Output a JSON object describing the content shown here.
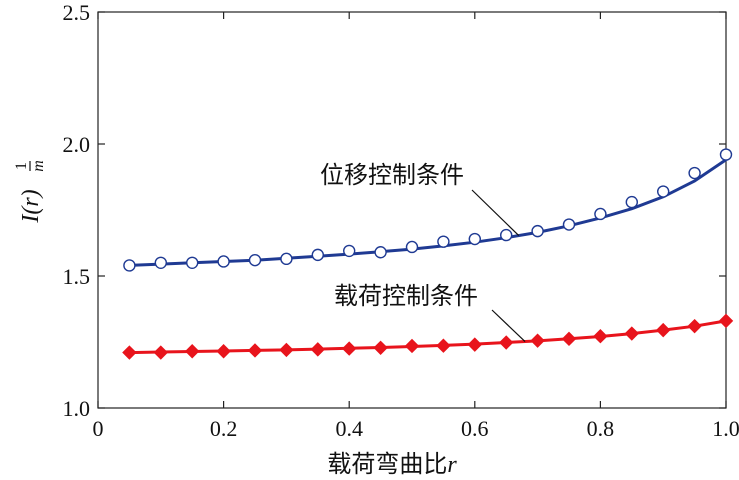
{
  "chart_data": {
    "type": "line",
    "xlabel": "载荷弯曲比",
    "xlabel_var": "r",
    "ylabel": {
      "base": "I(r)",
      "exp_num": "1",
      "exp_den": "m"
    },
    "xlim": [
      0,
      1.0
    ],
    "ylim": [
      1.0,
      2.5
    ],
    "xticks": [
      0,
      0.2,
      0.4,
      0.6,
      0.8,
      1.0
    ],
    "xtick_labels": [
      "0",
      "0.2",
      "0.4",
      "0.6",
      "0.8",
      "1.0"
    ],
    "yticks": [
      1.0,
      1.5,
      2.0,
      2.5
    ],
    "ytick_labels": [
      "1.0",
      "1.5",
      "2.0",
      "2.5"
    ],
    "grid": false,
    "series": [
      {
        "name": "位移控制条件",
        "line_color": "#1f3a93",
        "marker": "open-circle",
        "curve_x": [
          0.05,
          0.1,
          0.15,
          0.2,
          0.25,
          0.3,
          0.35,
          0.4,
          0.45,
          0.5,
          0.55,
          0.6,
          0.65,
          0.7,
          0.75,
          0.8,
          0.85,
          0.9,
          0.95,
          1.0
        ],
        "curve_y": [
          1.54,
          1.545,
          1.55,
          1.555,
          1.56,
          1.567,
          1.575,
          1.583,
          1.592,
          1.602,
          1.614,
          1.628,
          1.645,
          1.665,
          1.69,
          1.72,
          1.755,
          1.8,
          1.86,
          1.94
        ],
        "points_x": [
          0.05,
          0.1,
          0.15,
          0.2,
          0.25,
          0.3,
          0.35,
          0.4,
          0.45,
          0.5,
          0.55,
          0.6,
          0.65,
          0.7,
          0.75,
          0.8,
          0.85,
          0.9,
          0.95,
          1.0
        ],
        "points_y": [
          1.54,
          1.55,
          1.55,
          1.555,
          1.56,
          1.565,
          1.58,
          1.595,
          1.59,
          1.61,
          1.63,
          1.64,
          1.655,
          1.67,
          1.695,
          1.735,
          1.78,
          1.82,
          1.89,
          1.96
        ]
      },
      {
        "name": "载荷控制条件",
        "line_color": "#e8141c",
        "marker": "filled-diamond",
        "curve_x": [
          0.05,
          0.1,
          0.15,
          0.2,
          0.25,
          0.3,
          0.35,
          0.4,
          0.45,
          0.5,
          0.55,
          0.6,
          0.65,
          0.7,
          0.75,
          0.8,
          0.85,
          0.9,
          0.95,
          1.0
        ],
        "curve_y": [
          1.21,
          1.212,
          1.214,
          1.216,
          1.218,
          1.22,
          1.223,
          1.226,
          1.229,
          1.233,
          1.237,
          1.242,
          1.248,
          1.254,
          1.262,
          1.271,
          1.282,
          1.295,
          1.31,
          1.33
        ],
        "points_x": [
          0.05,
          0.1,
          0.15,
          0.2,
          0.25,
          0.3,
          0.35,
          0.4,
          0.45,
          0.5,
          0.55,
          0.6,
          0.65,
          0.7,
          0.75,
          0.8,
          0.85,
          0.9,
          0.95,
          1.0
        ],
        "points_y": [
          1.21,
          1.21,
          1.215,
          1.215,
          1.218,
          1.22,
          1.222,
          1.225,
          1.228,
          1.235,
          1.236,
          1.24,
          1.248,
          1.255,
          1.262,
          1.272,
          1.282,
          1.295,
          1.31,
          1.33
        ]
      }
    ],
    "annotations": [
      {
        "text": "位移控制条件",
        "series": 0,
        "point_at_x": 0.67
      },
      {
        "text": "载荷控制条件",
        "series": 1,
        "point_at_x": 0.68
      }
    ]
  }
}
